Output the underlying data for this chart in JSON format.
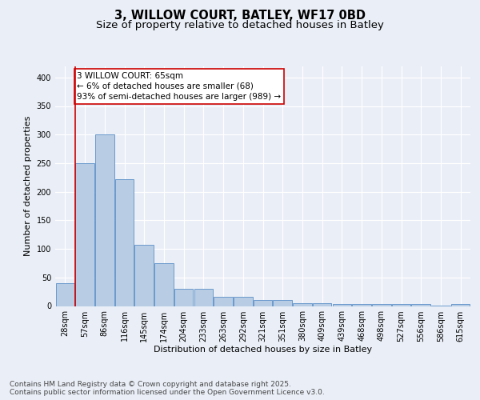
{
  "title_line1": "3, WILLOW COURT, BATLEY, WF17 0BD",
  "title_line2": "Size of property relative to detached houses in Batley",
  "xlabel": "Distribution of detached houses by size in Batley",
  "ylabel": "Number of detached properties",
  "categories": [
    "28sqm",
    "57sqm",
    "86sqm",
    "116sqm",
    "145sqm",
    "174sqm",
    "204sqm",
    "233sqm",
    "263sqm",
    "292sqm",
    "321sqm",
    "351sqm",
    "380sqm",
    "409sqm",
    "439sqm",
    "468sqm",
    "498sqm",
    "527sqm",
    "556sqm",
    "586sqm",
    "615sqm"
  ],
  "values": [
    40,
    250,
    300,
    222,
    107,
    75,
    30,
    30,
    16,
    16,
    10,
    10,
    5,
    5,
    3,
    3,
    3,
    3,
    3,
    1,
    3
  ],
  "bar_color": "#b8cce4",
  "bar_edge_color": "#5b8fc9",
  "vline_x": 0.5,
  "vline_color": "#cc0000",
  "annotation_text": "3 WILLOW COURT: 65sqm\n← 6% of detached houses are smaller (68)\n93% of semi-detached houses are larger (989) →",
  "annotation_box_color": "#ffffff",
  "annotation_box_edge_color": "#cc0000",
  "ylim": [
    0,
    420
  ],
  "yticks": [
    0,
    50,
    100,
    150,
    200,
    250,
    300,
    350,
    400
  ],
  "background_color": "#eaeff7",
  "plot_background_color": "#eaeff7",
  "footer_text": "Contains HM Land Registry data © Crown copyright and database right 2025.\nContains public sector information licensed under the Open Government Licence v3.0.",
  "title_fontsize": 10.5,
  "subtitle_fontsize": 9.5,
  "axis_label_fontsize": 8,
  "tick_label_fontsize": 7,
  "annotation_fontsize": 7.5,
  "footer_fontsize": 6.5
}
